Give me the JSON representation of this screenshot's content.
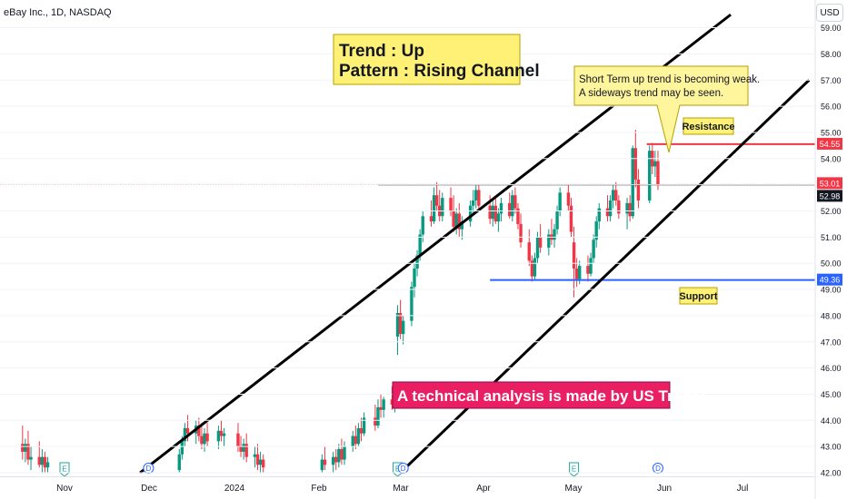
{
  "header": {
    "symbol_title": "eBay Inc., 1D, NASDAQ",
    "currency": "USD"
  },
  "annotations": {
    "trend_line1": "Trend : Up",
    "trend_line2": "Pattern : Rising Channel",
    "callout_line1": "Short Term up trend is becoming weak.",
    "callout_line2": "A sideways trend may be seen.",
    "resistance": "Resistance",
    "support": "Support",
    "credit": "A  technical analysis is made by US Trader."
  },
  "colors": {
    "up": "#089981",
    "down": "#f23645",
    "channel": "#000000",
    "resistance": "#f23645",
    "support": "#2962ff",
    "note_bg": "#fff176",
    "credit_bg": "#e91e63"
  },
  "chart_data": {
    "type": "candlestick",
    "title": "eBay Inc., 1D, NASDAQ",
    "ylim": [
      42.0,
      59.5
    ],
    "y_ticks": [
      42.0,
      43.0,
      44.0,
      45.0,
      46.0,
      47.0,
      48.0,
      49.0,
      50.0,
      51.0,
      52.0,
      53.0,
      54.0,
      55.0,
      56.0,
      57.0,
      58.0,
      59.0
    ],
    "x_ticks": [
      "Nov",
      "Dec",
      "2024",
      "Feb",
      "Mar",
      "Apr",
      "May",
      "Jun",
      "Jul"
    ],
    "price_labels": [
      {
        "value": "54.55",
        "color": "#f23645"
      },
      {
        "value": "53.01",
        "color": "#f23645"
      },
      {
        "value": "52.98",
        "color": "#131722"
      },
      {
        "value": "49.36",
        "color": "#2962ff"
      }
    ],
    "horizontal_lines": [
      {
        "name": "Resistance",
        "y": 54.55,
        "x_from": "2024-05-27",
        "color": "#f23645"
      },
      {
        "name": "Neckline",
        "y": 53.0,
        "x_from": "2024-02-21",
        "color": "#000000"
      },
      {
        "name": "Support",
        "y": 49.36,
        "x_from": "2024-04-01",
        "color": "#2962ff"
      }
    ],
    "channel_lines": [
      {
        "from": [
          "2023-11-28",
          42.0
        ],
        "to": [
          "2024-06-26",
          59.5
        ]
      },
      {
        "from": [
          "2024-02-29",
          42.0
        ],
        "to": [
          "2024-07-24",
          57.0
        ]
      }
    ],
    "event_markers": [
      {
        "label": "E",
        "date": "2023-11-01"
      },
      {
        "label": "D",
        "date": "2023-12-01"
      },
      {
        "label": "E",
        "date": "2024-02-28"
      },
      {
        "label": "D",
        "date": "2024-03-01"
      },
      {
        "label": "E",
        "date": "2024-05-01"
      },
      {
        "label": "D",
        "date": "2024-05-31"
      }
    ],
    "candles": [
      {
        "date": "2023-10-17",
        "o": 43.1,
        "h": 43.8,
        "l": 42.5,
        "c": 42.8
      },
      {
        "date": "2023-10-18",
        "o": 42.8,
        "h": 43.3,
        "l": 42.4,
        "c": 43.1
      },
      {
        "date": "2023-10-19",
        "o": 43.1,
        "h": 43.6,
        "l": 42.3,
        "c": 42.5
      },
      {
        "date": "2023-10-20",
        "o": 42.5,
        "h": 43.0,
        "l": 42.1,
        "c": 42.6
      },
      {
        "date": "2023-10-23",
        "o": 42.6,
        "h": 43.2,
        "l": 42.2,
        "c": 42.3
      },
      {
        "date": "2023-10-24",
        "o": 42.3,
        "h": 42.9,
        "l": 42.0,
        "c": 42.6
      },
      {
        "date": "2023-10-25",
        "o": 42.6,
        "h": 42.8,
        "l": 42.0,
        "c": 42.2
      },
      {
        "date": "2023-10-26",
        "o": 42.2,
        "h": 42.6,
        "l": 42.0,
        "c": 42.4
      },
      {
        "date": "2023-12-12",
        "o": 42.1,
        "h": 42.9,
        "l": 42.0,
        "c": 42.7
      },
      {
        "date": "2023-12-13",
        "o": 42.7,
        "h": 43.4,
        "l": 42.5,
        "c": 43.2
      },
      {
        "date": "2023-12-14",
        "o": 43.2,
        "h": 43.9,
        "l": 43.0,
        "c": 43.7
      },
      {
        "date": "2023-12-15",
        "o": 43.7,
        "h": 44.2,
        "l": 43.2,
        "c": 43.5
      },
      {
        "date": "2023-12-18",
        "o": 43.5,
        "h": 44.0,
        "l": 43.1,
        "c": 43.8
      },
      {
        "date": "2023-12-19",
        "o": 43.8,
        "h": 44.1,
        "l": 43.2,
        "c": 43.4
      },
      {
        "date": "2023-12-20",
        "o": 43.4,
        "h": 43.9,
        "l": 42.9,
        "c": 43.1
      },
      {
        "date": "2023-12-21",
        "o": 43.1,
        "h": 43.7,
        "l": 42.8,
        "c": 43.5
      },
      {
        "date": "2023-12-22",
        "o": 43.5,
        "h": 43.9,
        "l": 43.0,
        "c": 43.2
      },
      {
        "date": "2023-12-26",
        "o": 43.2,
        "h": 43.8,
        "l": 42.9,
        "c": 43.6
      },
      {
        "date": "2023-12-27",
        "o": 43.6,
        "h": 44.0,
        "l": 43.2,
        "c": 43.4
      },
      {
        "date": "2023-12-28",
        "o": 43.4,
        "h": 43.7,
        "l": 43.0,
        "c": 43.5
      },
      {
        "date": "2024-01-02",
        "o": 43.5,
        "h": 43.9,
        "l": 42.8,
        "c": 43.0
      },
      {
        "date": "2024-01-03",
        "o": 43.0,
        "h": 43.4,
        "l": 42.6,
        "c": 42.8
      },
      {
        "date": "2024-01-04",
        "o": 42.8,
        "h": 43.3,
        "l": 42.5,
        "c": 43.1
      },
      {
        "date": "2024-01-05",
        "o": 43.1,
        "h": 43.5,
        "l": 42.4,
        "c": 42.6
      },
      {
        "date": "2024-01-08",
        "o": 42.6,
        "h": 43.0,
        "l": 42.2,
        "c": 42.7
      },
      {
        "date": "2024-01-09",
        "o": 42.7,
        "h": 43.1,
        "l": 42.1,
        "c": 42.3
      },
      {
        "date": "2024-01-10",
        "o": 42.3,
        "h": 42.8,
        "l": 42.0,
        "c": 42.5
      },
      {
        "date": "2024-01-11",
        "o": 42.5,
        "h": 42.7,
        "l": 42.0,
        "c": 42.2
      },
      {
        "date": "2024-02-01",
        "o": 42.1,
        "h": 42.7,
        "l": 42.0,
        "c": 42.5
      },
      {
        "date": "2024-02-02",
        "o": 42.5,
        "h": 43.0,
        "l": 42.1,
        "c": 42.3
      },
      {
        "date": "2024-02-05",
        "o": 42.3,
        "h": 42.8,
        "l": 42.0,
        "c": 42.6
      },
      {
        "date": "2024-02-06",
        "o": 42.6,
        "h": 42.9,
        "l": 42.1,
        "c": 42.4
      },
      {
        "date": "2024-02-07",
        "o": 42.4,
        "h": 43.1,
        "l": 42.2,
        "c": 42.9
      },
      {
        "date": "2024-02-08",
        "o": 42.9,
        "h": 43.3,
        "l": 42.3,
        "c": 42.5
      },
      {
        "date": "2024-02-09",
        "o": 42.5,
        "h": 43.2,
        "l": 42.3,
        "c": 43.0
      },
      {
        "date": "2024-02-12",
        "o": 43.0,
        "h": 43.6,
        "l": 42.8,
        "c": 43.4
      },
      {
        "date": "2024-02-13",
        "o": 43.4,
        "h": 43.8,
        "l": 42.9,
        "c": 43.1
      },
      {
        "date": "2024-02-14",
        "o": 43.1,
        "h": 43.9,
        "l": 43.0,
        "c": 43.7
      },
      {
        "date": "2024-02-15",
        "o": 43.7,
        "h": 44.1,
        "l": 43.2,
        "c": 43.5
      },
      {
        "date": "2024-02-16",
        "o": 43.5,
        "h": 44.3,
        "l": 43.4,
        "c": 44.1
      },
      {
        "date": "2024-02-20",
        "o": 44.1,
        "h": 44.6,
        "l": 43.6,
        "c": 43.8
      },
      {
        "date": "2024-02-21",
        "o": 43.8,
        "h": 44.8,
        "l": 43.7,
        "c": 44.5
      },
      {
        "date": "2024-02-22",
        "o": 44.5,
        "h": 45.0,
        "l": 44.1,
        "c": 44.4
      },
      {
        "date": "2024-02-23",
        "o": 44.4,
        "h": 44.9,
        "l": 44.1,
        "c": 44.8
      },
      {
        "date": "2024-02-26",
        "o": 44.8,
        "h": 45.3,
        "l": 44.4,
        "c": 44.6
      },
      {
        "date": "2024-02-27",
        "o": 44.6,
        "h": 45.0,
        "l": 44.3,
        "c": 44.7
      },
      {
        "date": "2024-02-28",
        "o": 47.2,
        "h": 48.4,
        "l": 46.5,
        "c": 48.1
      },
      {
        "date": "2024-02-29",
        "o": 48.1,
        "h": 48.6,
        "l": 47.1,
        "c": 47.3
      },
      {
        "date": "2024-03-01",
        "o": 47.3,
        "h": 48.0,
        "l": 46.9,
        "c": 47.8
      },
      {
        "date": "2024-03-04",
        "o": 47.8,
        "h": 49.3,
        "l": 47.6,
        "c": 49.1
      },
      {
        "date": "2024-03-05",
        "o": 49.1,
        "h": 50.0,
        "l": 48.7,
        "c": 49.8
      },
      {
        "date": "2024-03-06",
        "o": 49.8,
        "h": 50.5,
        "l": 49.5,
        "c": 50.3
      },
      {
        "date": "2024-03-07",
        "o": 50.3,
        "h": 51.3,
        "l": 50.1,
        "c": 51.1
      },
      {
        "date": "2024-03-08",
        "o": 51.1,
        "h": 52.0,
        "l": 50.8,
        "c": 51.8
      },
      {
        "date": "2024-03-11",
        "o": 51.8,
        "h": 52.4,
        "l": 51.4,
        "c": 51.6
      },
      {
        "date": "2024-03-12",
        "o": 51.6,
        "h": 52.9,
        "l": 51.5,
        "c": 52.6
      },
      {
        "date": "2024-03-13",
        "o": 52.6,
        "h": 53.1,
        "l": 52.0,
        "c": 52.2
      },
      {
        "date": "2024-03-14",
        "o": 52.2,
        "h": 52.8,
        "l": 51.6,
        "c": 51.8
      },
      {
        "date": "2024-03-15",
        "o": 51.8,
        "h": 52.7,
        "l": 51.6,
        "c": 52.5
      },
      {
        "date": "2024-03-18",
        "o": 52.5,
        "h": 52.9,
        "l": 51.8,
        "c": 52.0
      },
      {
        "date": "2024-03-19",
        "o": 52.0,
        "h": 52.6,
        "l": 51.2,
        "c": 51.4
      },
      {
        "date": "2024-03-20",
        "o": 51.4,
        "h": 52.1,
        "l": 51.1,
        "c": 51.9
      },
      {
        "date": "2024-03-21",
        "o": 51.9,
        "h": 52.3,
        "l": 51.0,
        "c": 51.3
      },
      {
        "date": "2024-03-22",
        "o": 51.3,
        "h": 51.8,
        "l": 50.9,
        "c": 51.6
      },
      {
        "date": "2024-03-25",
        "o": 51.6,
        "h": 52.4,
        "l": 51.4,
        "c": 52.2
      },
      {
        "date": "2024-03-26",
        "o": 52.2,
        "h": 52.8,
        "l": 51.9,
        "c": 52.4
      },
      {
        "date": "2024-03-27",
        "o": 52.4,
        "h": 53.0,
        "l": 52.1,
        "c": 52.8
      },
      {
        "date": "2024-03-28",
        "o": 52.8,
        "h": 53.0,
        "l": 52.0,
        "c": 52.2
      },
      {
        "date": "2024-04-01",
        "o": 52.2,
        "h": 52.6,
        "l": 51.5,
        "c": 51.7
      },
      {
        "date": "2024-04-02",
        "o": 51.7,
        "h": 52.4,
        "l": 51.4,
        "c": 52.2
      },
      {
        "date": "2024-04-03",
        "o": 52.2,
        "h": 52.5,
        "l": 51.5,
        "c": 51.6
      },
      {
        "date": "2024-04-04",
        "o": 51.6,
        "h": 52.1,
        "l": 51.2,
        "c": 51.9
      },
      {
        "date": "2024-04-05",
        "o": 51.9,
        "h": 52.5,
        "l": 51.6,
        "c": 52.3
      },
      {
        "date": "2024-04-08",
        "o": 52.3,
        "h": 52.7,
        "l": 51.7,
        "c": 51.8
      },
      {
        "date": "2024-04-09",
        "o": 51.8,
        "h": 52.8,
        "l": 51.6,
        "c": 52.6
      },
      {
        "date": "2024-04-10",
        "o": 52.6,
        "h": 52.9,
        "l": 51.9,
        "c": 52.1
      },
      {
        "date": "2024-04-11",
        "o": 52.1,
        "h": 52.3,
        "l": 51.3,
        "c": 51.5
      },
      {
        "date": "2024-04-12",
        "o": 51.5,
        "h": 51.9,
        "l": 50.6,
        "c": 50.8
      },
      {
        "date": "2024-04-15",
        "o": 50.8,
        "h": 51.3,
        "l": 49.9,
        "c": 50.1
      },
      {
        "date": "2024-04-16",
        "o": 50.1,
        "h": 50.3,
        "l": 49.3,
        "c": 49.5
      },
      {
        "date": "2024-04-17",
        "o": 49.5,
        "h": 50.4,
        "l": 49.4,
        "c": 50.2
      },
      {
        "date": "2024-04-18",
        "o": 50.2,
        "h": 51.2,
        "l": 50.0,
        "c": 51.0
      },
      {
        "date": "2024-04-19",
        "o": 51.0,
        "h": 51.5,
        "l": 50.4,
        "c": 50.6
      },
      {
        "date": "2024-04-22",
        "o": 50.6,
        "h": 51.3,
        "l": 50.3,
        "c": 51.1
      },
      {
        "date": "2024-04-23",
        "o": 51.1,
        "h": 51.7,
        "l": 50.7,
        "c": 50.9
      },
      {
        "date": "2024-04-24",
        "o": 50.9,
        "h": 51.5,
        "l": 50.6,
        "c": 51.3
      },
      {
        "date": "2024-04-25",
        "o": 51.3,
        "h": 52.2,
        "l": 51.1,
        "c": 52.0
      },
      {
        "date": "2024-04-26",
        "o": 52.0,
        "h": 52.9,
        "l": 51.8,
        "c": 52.7
      },
      {
        "date": "2024-04-29",
        "o": 52.7,
        "h": 53.0,
        "l": 52.0,
        "c": 52.2
      },
      {
        "date": "2024-04-30",
        "o": 52.2,
        "h": 52.5,
        "l": 51.0,
        "c": 51.2
      },
      {
        "date": "2024-05-01",
        "o": 50.8,
        "h": 51.4,
        "l": 48.7,
        "c": 49.8
      },
      {
        "date": "2024-05-02",
        "o": 49.8,
        "h": 50.2,
        "l": 49.1,
        "c": 49.4
      },
      {
        "date": "2024-05-03",
        "o": 49.4,
        "h": 50.1,
        "l": 49.2,
        "c": 49.9
      },
      {
        "date": "2024-05-06",
        "o": 49.9,
        "h": 50.3,
        "l": 49.3,
        "c": 49.6
      },
      {
        "date": "2024-05-07",
        "o": 49.6,
        "h": 50.4,
        "l": 49.5,
        "c": 50.2
      },
      {
        "date": "2024-05-08",
        "o": 50.2,
        "h": 51.1,
        "l": 50.0,
        "c": 50.9
      },
      {
        "date": "2024-05-09",
        "o": 50.9,
        "h": 51.8,
        "l": 50.6,
        "c": 51.6
      },
      {
        "date": "2024-05-10",
        "o": 51.6,
        "h": 52.3,
        "l": 51.3,
        "c": 52.1
      },
      {
        "date": "2024-05-13",
        "o": 52.1,
        "h": 52.6,
        "l": 51.6,
        "c": 51.8
      },
      {
        "date": "2024-05-14",
        "o": 51.8,
        "h": 52.6,
        "l": 51.6,
        "c": 52.4
      },
      {
        "date": "2024-05-15",
        "o": 52.4,
        "h": 53.0,
        "l": 52.1,
        "c": 52.8
      },
      {
        "date": "2024-05-16",
        "o": 52.8,
        "h": 53.1,
        "l": 52.2,
        "c": 52.4
      },
      {
        "date": "2024-05-17",
        "o": 52.4,
        "h": 52.6,
        "l": 51.7,
        "c": 51.9
      },
      {
        "date": "2024-05-20",
        "o": 51.9,
        "h": 52.5,
        "l": 51.3,
        "c": 52.3
      },
      {
        "date": "2024-05-21",
        "o": 52.3,
        "h": 52.6,
        "l": 51.6,
        "c": 51.8
      },
      {
        "date": "2024-05-22",
        "o": 51.8,
        "h": 54.5,
        "l": 51.7,
        "c": 54.4
      },
      {
        "date": "2024-05-23",
        "o": 54.4,
        "h": 55.1,
        "l": 52.9,
        "c": 53.2
      },
      {
        "date": "2024-05-24",
        "o": 53.2,
        "h": 53.6,
        "l": 52.1,
        "c": 52.4
      },
      {
        "date": "2024-05-28",
        "o": 52.4,
        "h": 54.5,
        "l": 52.3,
        "c": 54.3
      },
      {
        "date": "2024-05-29",
        "o": 54.3,
        "h": 54.6,
        "l": 53.4,
        "c": 53.7
      },
      {
        "date": "2024-05-30",
        "o": 53.7,
        "h": 54.3,
        "l": 53.3,
        "c": 53.9
      },
      {
        "date": "2024-05-31",
        "o": 53.9,
        "h": 54.3,
        "l": 52.8,
        "c": 53.0
      }
    ]
  }
}
